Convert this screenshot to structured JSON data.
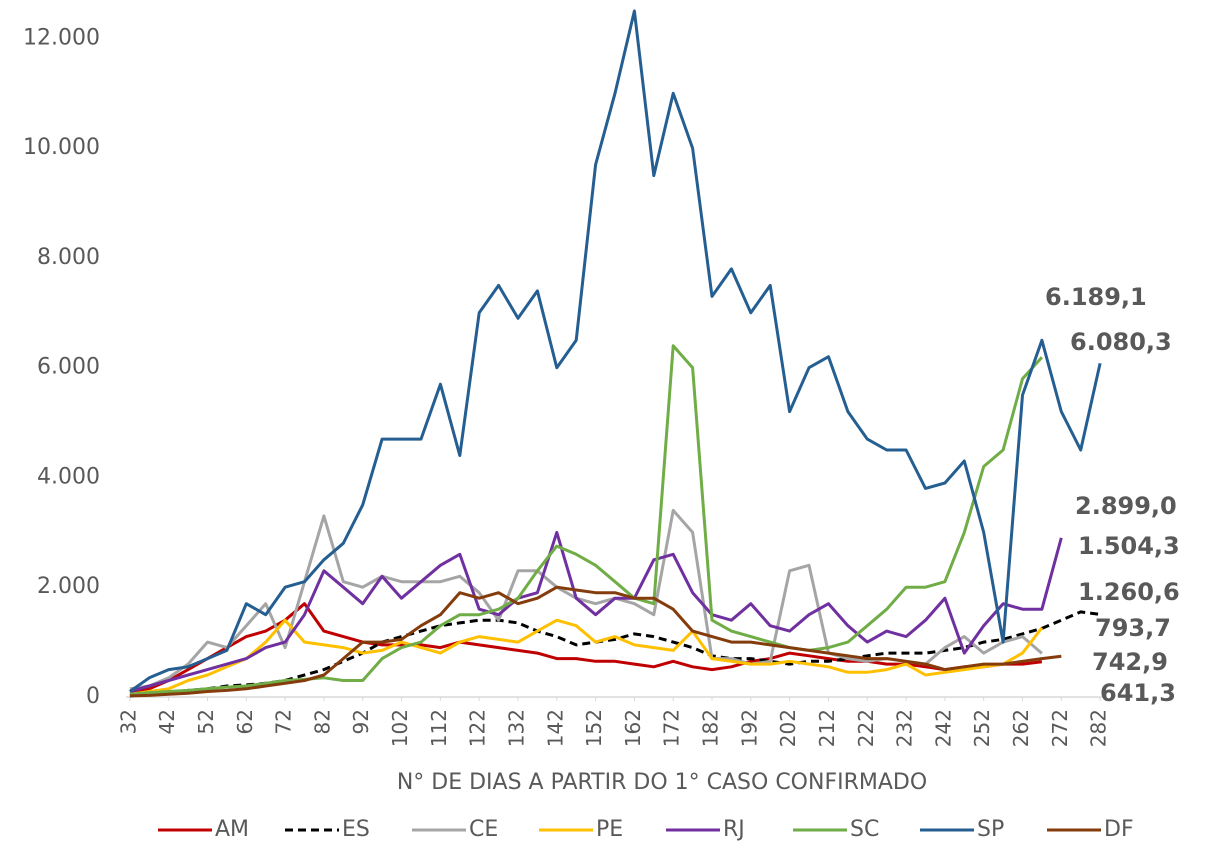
{
  "chart_data": {
    "type": "line",
    "x_label": "N° DE DIAS A PARTIR DO 1° CASO CONFIRMADO",
    "x": [
      32,
      37,
      42,
      47,
      52,
      57,
      62,
      67,
      72,
      77,
      82,
      87,
      92,
      97,
      102,
      107,
      112,
      117,
      122,
      127,
      132,
      137,
      142,
      147,
      152,
      157,
      162,
      167,
      172,
      177,
      182,
      187,
      192,
      197,
      202,
      207,
      212,
      217,
      222,
      227,
      232,
      237,
      242,
      247,
      252,
      257,
      262,
      267,
      272,
      277,
      282
    ],
    "xlim": [
      31,
      283
    ],
    "xticks": [
      32,
      42,
      52,
      62,
      72,
      82,
      92,
      102,
      112,
      122,
      132,
      142,
      152,
      162,
      172,
      182,
      192,
      202,
      212,
      222,
      232,
      242,
      252,
      262,
      272,
      282
    ],
    "ylim": [
      0,
      12700
    ],
    "yticks": [
      0,
      {
        "value": 2000,
        "label": "2.000"
      },
      {
        "value": 4000,
        "label": "4.000"
      },
      {
        "value": 6000,
        "label": "6.000"
      },
      {
        "value": 8000,
        "label": "8.000"
      },
      {
        "value": 10000,
        "label": "10.000"
      },
      {
        "value": 12000,
        "label": "12.000"
      }
    ],
    "series": [
      {
        "name": "AM",
        "color": "#c00000",
        "values": [
          100,
          150,
          300,
          500,
          700,
          900,
          1100,
          1200,
          1400,
          1700,
          1200,
          1100,
          1000,
          950,
          950,
          950,
          900,
          1000,
          950,
          900,
          850,
          800,
          700,
          700,
          650,
          650,
          600,
          550,
          650,
          550,
          500,
          550,
          650,
          700,
          800,
          750,
          700,
          650,
          650,
          600,
          600,
          550,
          500,
          550,
          550,
          600,
          600,
          641.3,
          null,
          null,
          null
        ],
        "value_labels": [
          null,
          null,
          null,
          null,
          null,
          null,
          null,
          null,
          null,
          null,
          null,
          null,
          null,
          null,
          null,
          null,
          null,
          null,
          null,
          null,
          null,
          null,
          null,
          null,
          null,
          null,
          null,
          null,
          null,
          null,
          null,
          null,
          null,
          null,
          null,
          null,
          null,
          null,
          null,
          null,
          null,
          null,
          null,
          null,
          null,
          null,
          null,
          "641,3",
          null,
          null,
          null
        ]
      },
      {
        "name": "ES",
        "color": "#000000",
        "style": "dashed",
        "values": [
          20,
          50,
          80,
          120,
          150,
          200,
          220,
          250,
          300,
          400,
          500,
          650,
          800,
          1000,
          1100,
          1200,
          1300,
          1350,
          1400,
          1400,
          1350,
          1200,
          1100,
          950,
          1000,
          1050,
          1150,
          1100,
          1000,
          900,
          750,
          700,
          700,
          650,
          600,
          650,
          650,
          700,
          750,
          800,
          800,
          800,
          850,
          900,
          1000,
          1050,
          1150,
          1250,
          1400,
          1550,
          1504.3
        ],
        "value_labels": [
          null,
          null,
          null,
          null,
          null,
          null,
          null,
          null,
          null,
          null,
          null,
          null,
          null,
          null,
          null,
          null,
          null,
          null,
          null,
          null,
          null,
          null,
          null,
          null,
          null,
          null,
          null,
          null,
          null,
          null,
          null,
          null,
          null,
          null,
          null,
          null,
          null,
          null,
          null,
          null,
          null,
          null,
          null,
          null,
          null,
          null,
          null,
          null,
          null,
          null,
          "1.504,3"
        ]
      },
      {
        "name": "CE",
        "color": "#a5a5a5",
        "values": [
          150,
          200,
          350,
          600,
          1000,
          900,
          1300,
          1700,
          900,
          2100,
          3300,
          2100,
          2000,
          2200,
          2100,
          2100,
          2100,
          2200,
          1900,
          1400,
          2300,
          2300,
          2000,
          1800,
          1700,
          1800,
          1700,
          1500,
          3400,
          3000,
          700,
          700,
          600,
          650,
          2300,
          2400,
          800,
          700,
          650,
          700,
          650,
          600,
          900,
          1100,
          800,
          1000,
          1100,
          793.7,
          null,
          null,
          null
        ],
        "value_labels": [
          null,
          null,
          null,
          null,
          null,
          null,
          null,
          null,
          null,
          null,
          null,
          null,
          null,
          null,
          null,
          null,
          null,
          null,
          null,
          null,
          null,
          null,
          null,
          null,
          null,
          null,
          null,
          null,
          null,
          null,
          null,
          null,
          null,
          null,
          null,
          null,
          null,
          null,
          null,
          null,
          null,
          null,
          null,
          null,
          null,
          null,
          null,
          "793,7",
          null,
          null,
          null
        ]
      },
      {
        "name": "PE",
        "color": "#ffc000",
        "values": [
          50,
          100,
          150,
          300,
          400,
          550,
          700,
          1000,
          1400,
          1000,
          950,
          900,
          800,
          850,
          1000,
          900,
          800,
          1000,
          1100,
          1050,
          1000,
          1200,
          1400,
          1300,
          1000,
          1100,
          950,
          900,
          850,
          1200,
          700,
          650,
          600,
          600,
          650,
          600,
          550,
          450,
          450,
          500,
          600,
          400,
          450,
          500,
          550,
          600,
          800,
          1260.6,
          null,
          null,
          null
        ],
        "value_labels": [
          null,
          null,
          null,
          null,
          null,
          null,
          null,
          null,
          null,
          null,
          null,
          null,
          null,
          null,
          null,
          null,
          null,
          null,
          null,
          null,
          null,
          null,
          null,
          null,
          null,
          null,
          null,
          null,
          null,
          null,
          null,
          null,
          null,
          null,
          null,
          null,
          null,
          null,
          null,
          null,
          null,
          null,
          null,
          null,
          null,
          null,
          null,
          "1.260,6",
          null,
          null,
          null
        ]
      },
      {
        "name": "RJ",
        "color": "#7030a0",
        "values": [
          100,
          200,
          300,
          400,
          500,
          600,
          700,
          900,
          1000,
          1500,
          2300,
          2000,
          1700,
          2200,
          1800,
          2100,
          2400,
          2600,
          1600,
          1500,
          1800,
          1900,
          3000,
          1800,
          1500,
          1800,
          1800,
          2500,
          2600,
          1900,
          1500,
          1400,
          1700,
          1300,
          1200,
          1500,
          1700,
          1300,
          1000,
          1200,
          1100,
          1400,
          1800,
          800,
          1300,
          1700,
          1600,
          1600,
          2899.0,
          null,
          null
        ],
        "value_labels": [
          null,
          null,
          null,
          null,
          null,
          null,
          null,
          null,
          null,
          null,
          null,
          null,
          null,
          null,
          null,
          null,
          null,
          null,
          null,
          null,
          null,
          null,
          null,
          null,
          null,
          null,
          null,
          null,
          null,
          null,
          null,
          null,
          null,
          null,
          null,
          null,
          null,
          null,
          null,
          null,
          null,
          null,
          null,
          null,
          null,
          null,
          null,
          null,
          "2.899,0",
          null,
          null
        ]
      },
      {
        "name": "SC",
        "color": "#70ad47",
        "values": [
          50,
          80,
          100,
          120,
          150,
          180,
          200,
          250,
          300,
          320,
          350,
          300,
          300,
          700,
          900,
          1000,
          1300,
          1500,
          1500,
          1600,
          1800,
          2300,
          2750,
          2600,
          2400,
          2100,
          1800,
          1700,
          6400,
          6000,
          1400,
          1200,
          1100,
          1000,
          900,
          850,
          900,
          1000,
          1300,
          1600,
          2000,
          2000,
          2100,
          3000,
          4200,
          4500,
          5800,
          6189.1,
          null,
          null,
          null
        ],
        "value_labels": [
          null,
          null,
          null,
          null,
          null,
          null,
          null,
          null,
          null,
          null,
          null,
          null,
          null,
          null,
          null,
          null,
          null,
          null,
          null,
          null,
          null,
          null,
          null,
          null,
          null,
          null,
          null,
          null,
          null,
          null,
          null,
          null,
          null,
          null,
          null,
          null,
          null,
          null,
          null,
          null,
          null,
          null,
          null,
          null,
          null,
          null,
          null,
          "6.189,1",
          null,
          null,
          null
        ]
      },
      {
        "name": "SP",
        "color": "#255e91",
        "values": [
          100,
          350,
          500,
          550,
          700,
          850,
          1700,
          1500,
          2000,
          2100,
          2500,
          2800,
          3500,
          4700,
          4700,
          4700,
          5700,
          4400,
          7000,
          7500,
          6900,
          7400,
          6000,
          6500,
          9700,
          11000,
          12500,
          9500,
          11000,
          10000,
          7300,
          7800,
          7000,
          7500,
          5200,
          6000,
          6200,
          5200,
          4700,
          4500,
          4500,
          3800,
          3900,
          4300,
          3000,
          1000,
          5500,
          6500,
          5200,
          4500,
          6080.3
        ],
        "value_labels": [
          null,
          null,
          null,
          null,
          null,
          null,
          null,
          null,
          null,
          null,
          null,
          null,
          null,
          null,
          null,
          null,
          null,
          null,
          null,
          null,
          null,
          null,
          null,
          null,
          null,
          null,
          null,
          null,
          null,
          null,
          null,
          null,
          null,
          null,
          null,
          null,
          null,
          null,
          null,
          null,
          null,
          null,
          null,
          null,
          null,
          null,
          null,
          null,
          null,
          null,
          "6.080,3"
        ]
      },
      {
        "name": "DF",
        "color": "#843c0c",
        "values": [
          20,
          30,
          50,
          70,
          100,
          120,
          150,
          200,
          250,
          300,
          400,
          700,
          1000,
          1000,
          1050,
          1300,
          1500,
          1900,
          1800,
          1900,
          1700,
          1800,
          2000,
          1950,
          1900,
          1900,
          1800,
          1800,
          1600,
          1200,
          1100,
          1000,
          1000,
          950,
          900,
          850,
          800,
          750,
          700,
          700,
          650,
          600,
          500,
          550,
          600,
          600,
          650,
          700,
          742.9,
          null,
          null
        ],
        "value_labels": [
          null,
          null,
          null,
          null,
          null,
          null,
          null,
          null,
          null,
          null,
          null,
          null,
          null,
          null,
          null,
          null,
          null,
          null,
          null,
          null,
          null,
          null,
          null,
          null,
          null,
          null,
          null,
          null,
          null,
          null,
          null,
          null,
          null,
          null,
          null,
          null,
          null,
          null,
          null,
          null,
          null,
          null,
          null,
          null,
          null,
          null,
          null,
          null,
          "742,9",
          null,
          null
        ]
      }
    ]
  }
}
